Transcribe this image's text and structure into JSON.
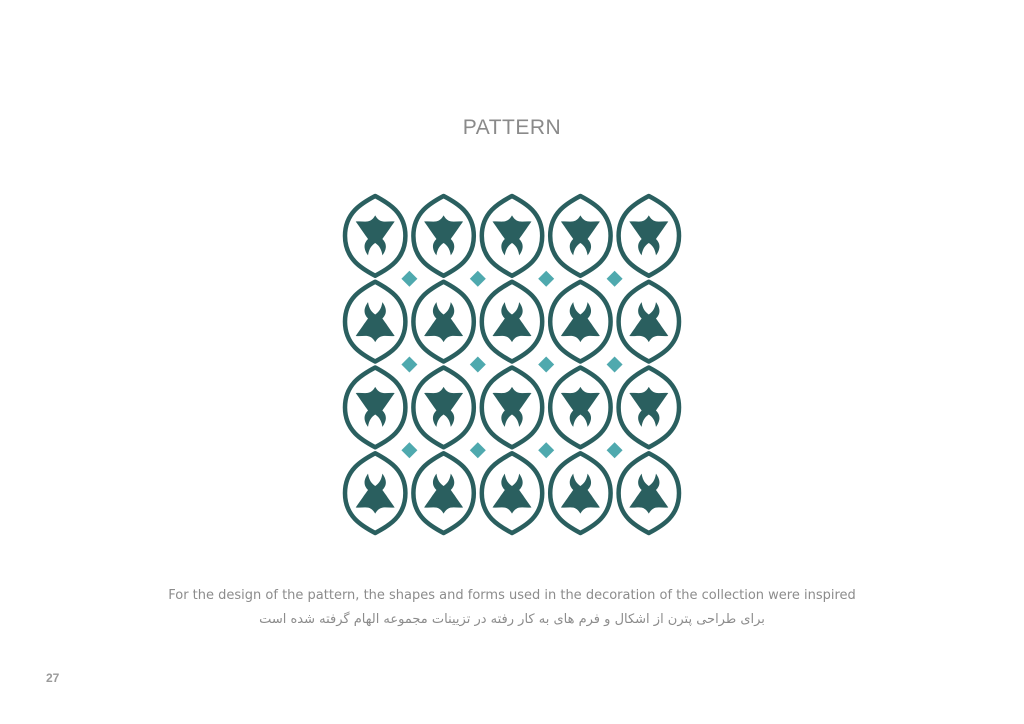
{
  "page": {
    "title": "PATTERN",
    "caption_en": "For the design of the pattern, the shapes and forms used in the decoration of the collection were inspired",
    "caption_fa": "برای طراحی پترن از اشکال و فرم های به کار رفته در تزیینات مجموعه الهام گرفته شده است",
    "page_number": "27"
  },
  "pattern": {
    "columns": 5,
    "rows": 4,
    "primary_color": "#2a5f5f",
    "accent_color": "#4fa9ae",
    "background_color": "#ffffff"
  }
}
